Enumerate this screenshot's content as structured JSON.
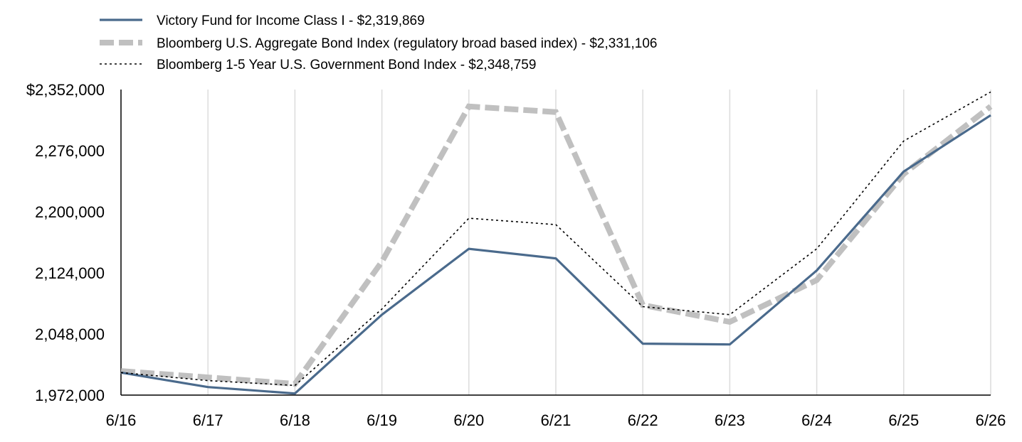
{
  "chart_data": {
    "type": "line",
    "categories": [
      "6/16",
      "6/17",
      "6/18",
      "6/19",
      "6/20",
      "6/21",
      "6/22",
      "6/23",
      "6/24",
      "6/25",
      "6/26"
    ],
    "yticks": [
      "$2,352,000",
      "2,276,000",
      "2,200,000",
      "2,124,000",
      "2,048,000",
      "1,972,000"
    ],
    "ylim": [
      1972000,
      2352000
    ],
    "grid": "vertical",
    "legend_position": "top-left",
    "series": [
      {
        "name": "Victory Fund for Income Class I - $2,319,869",
        "color": "#4a6a8c",
        "style": "solid",
        "values": [
          2000000,
          1982000,
          1974000,
          2072000,
          2154000,
          2142000,
          2036000,
          2035000,
          2127000,
          2250000,
          2320000
        ]
      },
      {
        "name": "Bloomberg U.S. Aggregate Bond Index (regulatory broad based index) - $2,331,106",
        "color": "#c0c0c0",
        "style": "dashed",
        "values": [
          2002000,
          1994000,
          1986000,
          2138000,
          2331000,
          2324000,
          2084000,
          2063000,
          2115000,
          2247000,
          2331000
        ]
      },
      {
        "name": "Bloomberg 1-5 Year U.S. Government Bond Index - $2,348,759",
        "color": "#000000",
        "style": "dotted",
        "values": [
          2000000,
          1990000,
          1984000,
          2079000,
          2192000,
          2184000,
          2082000,
          2072000,
          2154000,
          2288000,
          2349000
        ]
      }
    ]
  }
}
